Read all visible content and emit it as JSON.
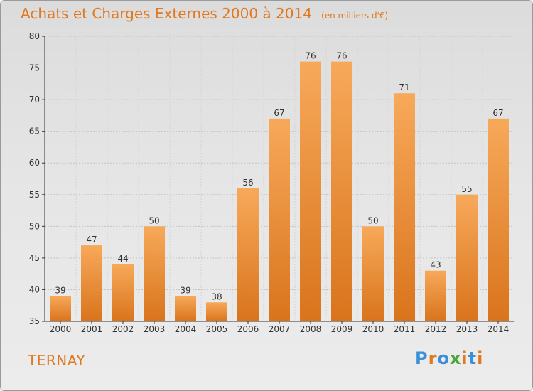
{
  "page": {
    "title": "Achats et Charges Externes 2000 à 2014",
    "subtitle": "(en milliers d'€)",
    "commune": "TERNAY",
    "logo_text": "Proxiti"
  },
  "colors": {
    "title": "#e07820",
    "bar_top": "#f7a95a",
    "bar_bottom": "#d9741c",
    "logo": [
      "#3a8fd8",
      "#e07820",
      "#3a8fd8",
      "#4aa83a",
      "#e07820",
      "#3a8fd8",
      "#e07820"
    ]
  },
  "chart_data": {
    "type": "bar",
    "title": "Achats et Charges Externes 2000 à 2014",
    "subtitle": "(en milliers d'€)",
    "categories": [
      "2000",
      "2001",
      "2002",
      "2003",
      "2004",
      "2005",
      "2006",
      "2007",
      "2008",
      "2009",
      "2010",
      "2011",
      "2012",
      "2013",
      "2014"
    ],
    "values": [
      39,
      47,
      44,
      50,
      39,
      38,
      56,
      67,
      76,
      76,
      50,
      71,
      43,
      55,
      67
    ],
    "ylim": [
      35,
      80
    ],
    "yticks": [
      35,
      40,
      45,
      50,
      55,
      60,
      65,
      70,
      75,
      80
    ],
    "grid": true,
    "data_labels": true
  }
}
